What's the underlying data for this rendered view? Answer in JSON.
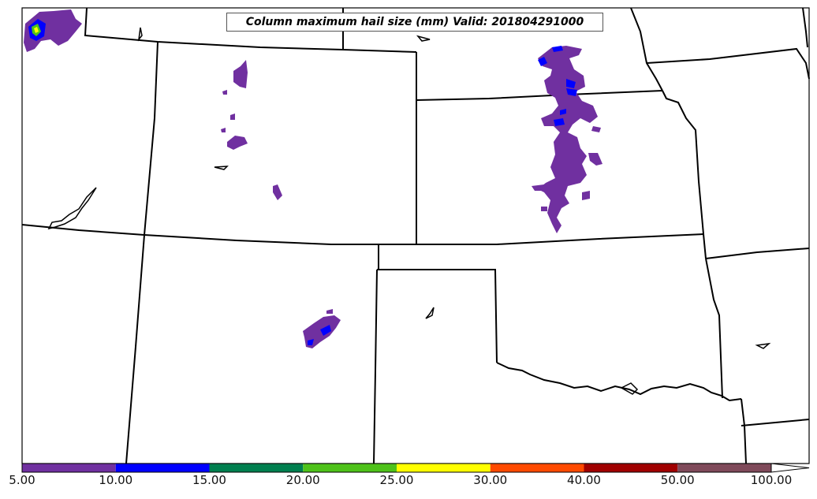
{
  "title": "Column maximum hail size (mm) Valid: 201804291000",
  "colorbar": {
    "ticks": [
      "5.00",
      "10.00",
      "15.00",
      "20.00",
      "25.00",
      "30.00",
      "40.00",
      "50.00",
      "100.00"
    ],
    "colors": [
      "#7030a0",
      "#0000ff",
      "#007f4f",
      "#4ec21a",
      "#ffff00",
      "#ff4a00",
      "#a00000",
      "#7f4a5a"
    ],
    "extend": "max"
  },
  "colors": {
    "border": "#000000",
    "hail_purple": "#7030a0",
    "hail_blue": "#0000ff",
    "hail_green": "#4ec21a",
    "hail_yellow": "#ffff00"
  }
}
